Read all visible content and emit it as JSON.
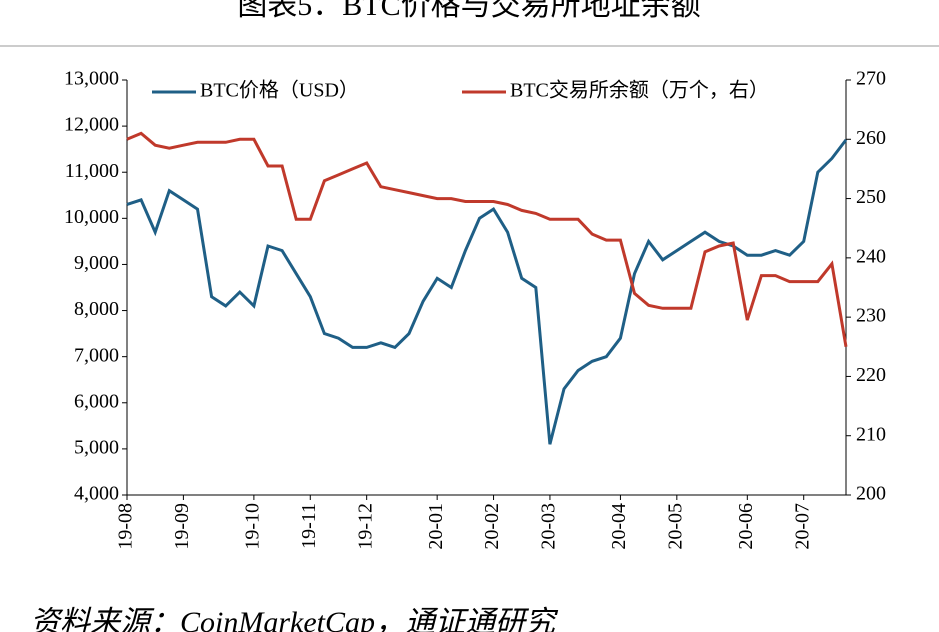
{
  "chart_data": {
    "type": "line",
    "title": "图表5：BTC价格与交易所地址余额",
    "source": "资料来源：CoinMarketCap，通证通研究",
    "categories": [
      "19-08",
      null,
      null,
      null,
      "19-09",
      null,
      null,
      null,
      null,
      "19-10",
      null,
      null,
      null,
      "19-11",
      null,
      null,
      null,
      "19-12",
      null,
      null,
      null,
      null,
      "20-01",
      null,
      null,
      null,
      "20-02",
      null,
      null,
      null,
      "20-03",
      null,
      null,
      null,
      null,
      "20-04",
      null,
      null,
      null,
      "20-05",
      null,
      null,
      null,
      null,
      "20-06",
      null,
      null,
      null,
      "20-07",
      null,
      null,
      null
    ],
    "series": [
      {
        "name": "BTC价格（USD）",
        "color": "#1f5f86",
        "axis": "y",
        "values": [
          10300,
          10400,
          9700,
          10600,
          10400,
          10200,
          8300,
          8100,
          8400,
          8100,
          9400,
          9300,
          8800,
          8300,
          7500,
          7400,
          7200,
          7200,
          7300,
          7200,
          7500,
          8200,
          8700,
          8500,
          9300,
          10000,
          10200,
          9700,
          8700,
          8500,
          5100,
          6300,
          6700,
          6900,
          7000,
          7400,
          8800,
          9500,
          9100,
          9300,
          9500,
          9700,
          9500,
          9400,
          9200,
          9200,
          9300,
          9200,
          9500,
          11000,
          11300,
          11700
        ]
      },
      {
        "name": "BTC交易所余额（万个，右）",
        "color": "#c0392b",
        "axis": "y2",
        "values": [
          260,
          261,
          259,
          258.5,
          259,
          259.5,
          259.5,
          259.5,
          260,
          260,
          255.5,
          255.5,
          246.5,
          246.5,
          253,
          254,
          255,
          256,
          252,
          251.5,
          251,
          250.5,
          250,
          250,
          249.5,
          249.5,
          249.5,
          249,
          248,
          247.5,
          246.5,
          246.5,
          246.5,
          244,
          243,
          243,
          234,
          232,
          231.5,
          231.5,
          231.5,
          241,
          242,
          242.5,
          229.5,
          237,
          237,
          236,
          236,
          236,
          239,
          225
        ]
      }
    ],
    "ylim": [
      4000,
      13000
    ],
    "yticks": [
      {
        "value": 4000,
        "label": "4,000"
      },
      {
        "value": 5000,
        "label": "5,000"
      },
      {
        "value": 6000,
        "label": "6,000"
      },
      {
        "value": 7000,
        "label": "7,000"
      },
      {
        "value": 8000,
        "label": "8,000"
      },
      {
        "value": 9000,
        "label": "9,000"
      },
      {
        "value": 10000,
        "label": "10,000"
      },
      {
        "value": 11000,
        "label": "11,000"
      },
      {
        "value": 12000,
        "label": "12,000"
      },
      {
        "value": 13000,
        "label": "13,000"
      }
    ],
    "y2lim": [
      200,
      270
    ],
    "y2ticks": [
      200,
      210,
      220,
      230,
      240,
      250,
      260,
      270
    ]
  }
}
